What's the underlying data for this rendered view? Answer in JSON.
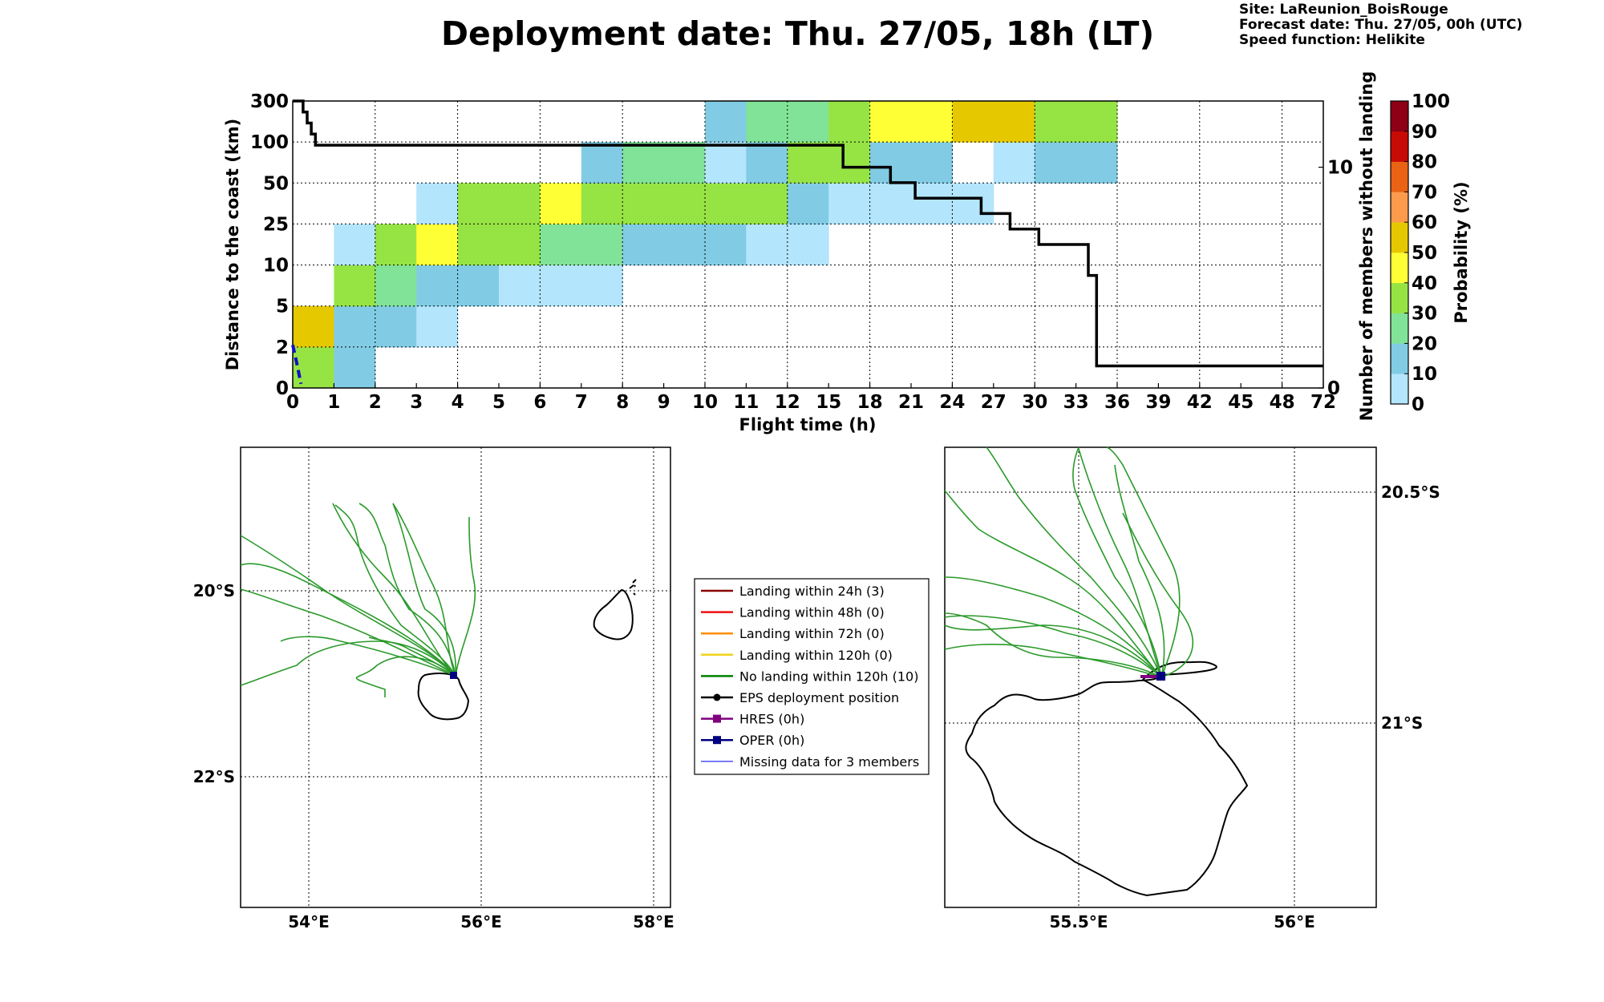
{
  "header": {
    "title": "Deployment date: Thu. 27/05, 18h (LT)",
    "site": "Site: LaReunion_BoisRouge",
    "forecast": "Forecast date: Thu. 27/05, 00h (UTC)",
    "speed": "Speed function: Helikite"
  },
  "chart_data": [
    {
      "type": "heatmap",
      "xlabel": "Flight time (h)",
      "ylabel": "Distance to the coast (km)",
      "y2label": "Number of members without landing",
      "colorbar_label": "Probability (%)",
      "x_bins": [
        "0",
        "1",
        "2",
        "3",
        "4",
        "5",
        "6",
        "7",
        "8",
        "9",
        "10",
        "11",
        "12",
        "15",
        "18",
        "21",
        "24",
        "27",
        "30",
        "33",
        "36",
        "39",
        "42",
        "45",
        "48",
        "72"
      ],
      "y_bins": [
        "0",
        "2",
        "5",
        "10",
        "25",
        "50",
        "100",
        "300"
      ],
      "y2_ticks": [
        "0",
        "10"
      ],
      "y2_range": [
        0,
        13
      ],
      "colorbar_ticks": [
        "0",
        "10",
        "20",
        "30",
        "40",
        "50",
        "60",
        "70",
        "80",
        "90",
        "100"
      ],
      "colorbar_colors": [
        "#b3e5fc",
        "#81cce4",
        "#81e397",
        "#96e444",
        "#ffff36",
        "#e6c800",
        "#fd9b4d",
        "#ea6314",
        "#c70b04",
        "#8d0015"
      ],
      "cells": [
        {
          "xi": 0,
          "yi": 0,
          "p": 30
        },
        {
          "xi": 0,
          "yi": 1,
          "p": 50
        },
        {
          "xi": 1,
          "yi": 0,
          "p": 10
        },
        {
          "xi": 1,
          "yi": 1,
          "p": 10
        },
        {
          "xi": 1,
          "yi": 2,
          "p": 30
        },
        {
          "xi": 1,
          "yi": 3,
          "p": 0
        },
        {
          "xi": 2,
          "yi": 1,
          "p": 10
        },
        {
          "xi": 2,
          "yi": 2,
          "p": 20
        },
        {
          "xi": 2,
          "yi": 3,
          "p": 30
        },
        {
          "xi": 3,
          "yi": 1,
          "p": 0
        },
        {
          "xi": 3,
          "yi": 2,
          "p": 10
        },
        {
          "xi": 3,
          "yi": 3,
          "p": 40
        },
        {
          "xi": 3,
          "yi": 4,
          "p": 0
        },
        {
          "xi": 4,
          "yi": 2,
          "p": 10
        },
        {
          "xi": 4,
          "yi": 3,
          "p": 30
        },
        {
          "xi": 4,
          "yi": 4,
          "p": 30
        },
        {
          "xi": 5,
          "yi": 2,
          "p": 0
        },
        {
          "xi": 5,
          "yi": 3,
          "p": 30
        },
        {
          "xi": 5,
          "yi": 4,
          "p": 30
        },
        {
          "xi": 6,
          "yi": 2,
          "p": 0
        },
        {
          "xi": 6,
          "yi": 3,
          "p": 20
        },
        {
          "xi": 6,
          "yi": 4,
          "p": 40
        },
        {
          "xi": 7,
          "yi": 2,
          "p": 0
        },
        {
          "xi": 7,
          "yi": 3,
          "p": 20
        },
        {
          "xi": 7,
          "yi": 4,
          "p": 30
        },
        {
          "xi": 7,
          "yi": 5,
          "p": 10
        },
        {
          "xi": 8,
          "yi": 3,
          "p": 10
        },
        {
          "xi": 8,
          "yi": 4,
          "p": 30
        },
        {
          "xi": 8,
          "yi": 5,
          "p": 20
        },
        {
          "xi": 9,
          "yi": 3,
          "p": 10
        },
        {
          "xi": 9,
          "yi": 4,
          "p": 30
        },
        {
          "xi": 9,
          "yi": 5,
          "p": 20
        },
        {
          "xi": 10,
          "yi": 3,
          "p": 10
        },
        {
          "xi": 10,
          "yi": 4,
          "p": 30
        },
        {
          "xi": 10,
          "yi": 5,
          "p": 0
        },
        {
          "xi": 10,
          "yi": 6,
          "p": 10
        },
        {
          "xi": 11,
          "yi": 3,
          "p": 0
        },
        {
          "xi": 11,
          "yi": 4,
          "p": 30
        },
        {
          "xi": 11,
          "yi": 5,
          "p": 10
        },
        {
          "xi": 11,
          "yi": 6,
          "p": 20
        },
        {
          "xi": 12,
          "yi": 3,
          "p": 0
        },
        {
          "xi": 12,
          "yi": 4,
          "p": 10
        },
        {
          "xi": 12,
          "yi": 5,
          "p": 30
        },
        {
          "xi": 12,
          "yi": 6,
          "p": 20
        },
        {
          "xi": 13,
          "yi": 4,
          "p": 0
        },
        {
          "xi": 13,
          "yi": 5,
          "p": 30
        },
        {
          "xi": 13,
          "yi": 6,
          "p": 30
        },
        {
          "xi": 14,
          "yi": 4,
          "p": 0
        },
        {
          "xi": 14,
          "yi": 5,
          "p": 10
        },
        {
          "xi": 14,
          "yi": 6,
          "p": 40
        },
        {
          "xi": 15,
          "yi": 4,
          "p": 0
        },
        {
          "xi": 15,
          "yi": 5,
          "p": 10
        },
        {
          "xi": 15,
          "yi": 6,
          "p": 40
        },
        {
          "xi": 16,
          "yi": 4,
          "p": 0
        },
        {
          "xi": 16,
          "yi": 6,
          "p": 50
        },
        {
          "xi": 17,
          "yi": 5,
          "p": 0
        },
        {
          "xi": 17,
          "yi": 6,
          "p": 50
        },
        {
          "xi": 18,
          "yi": 5,
          "p": 10
        },
        {
          "xi": 18,
          "yi": 6,
          "p": 30
        },
        {
          "xi": 19,
          "yi": 5,
          "p": 10
        },
        {
          "xi": 19,
          "yi": 6,
          "p": 30
        }
      ],
      "members_without_landing": {
        "x": [
          0,
          0.25,
          0.25,
          0.35,
          0.35,
          0.45,
          0.45,
          0.55,
          0.55,
          13.35,
          13.35,
          14.5,
          14.5,
          15.1,
          15.1,
          15.4,
          15.4,
          16.7,
          16.7,
          17.4,
          17.4,
          18.1,
          18.1,
          19.3,
          19.3,
          19.5,
          19.5,
          25
        ],
        "y": [
          13,
          13,
          12.5,
          12.5,
          12,
          12,
          11.5,
          11.5,
          11,
          11,
          10,
          10,
          9.3,
          9.3,
          8.6,
          8.6,
          8.6,
          8.6,
          7.9,
          7.9,
          7.2,
          7.2,
          6.5,
          6.5,
          5.1,
          5.1,
          1,
          1
        ]
      },
      "oper_dashed": {
        "x": [
          0,
          0.1,
          0.2
        ],
        "y": [
          1.05,
          0.6,
          0.1
        ]
      }
    },
    {
      "type": "map",
      "x_ticks": [
        "54°E",
        "56°E",
        "58°E"
      ],
      "y_ticks": [
        "20°S",
        "22°S"
      ],
      "lon_range": [
        53.4,
        58.2
      ],
      "lat_range": [
        -23.5,
        -18.5
      ]
    },
    {
      "type": "map",
      "x_ticks": [
        "55.5°E",
        "56°E"
      ],
      "y_ticks": [
        "20.5°S",
        "21°S"
      ],
      "lon_range": [
        55.15,
        56.15
      ],
      "lat_range": [
        -21.4,
        -20.4
      ]
    }
  ],
  "legend": {
    "items": [
      {
        "label": "Landing within 24h (3)",
        "color": "#8b0000"
      },
      {
        "label": "Landing within 48h (0)",
        "color": "#ee1111"
      },
      {
        "label": "Landing within 72h (0)",
        "color": "#ff8c00"
      },
      {
        "label": "Landing within 120h (0)",
        "color": "#f2d21a"
      },
      {
        "label": "No landing within 120h (10)",
        "color": "#008000"
      },
      {
        "label": "EPS deployment position",
        "color": "#000000"
      },
      {
        "label": "HRES (0h)",
        "color": "#800080"
      },
      {
        "label": "OPER (0h)",
        "color": "#000080"
      },
      {
        "label": "Missing data for 3 members",
        "color": "#4040ff"
      }
    ]
  }
}
